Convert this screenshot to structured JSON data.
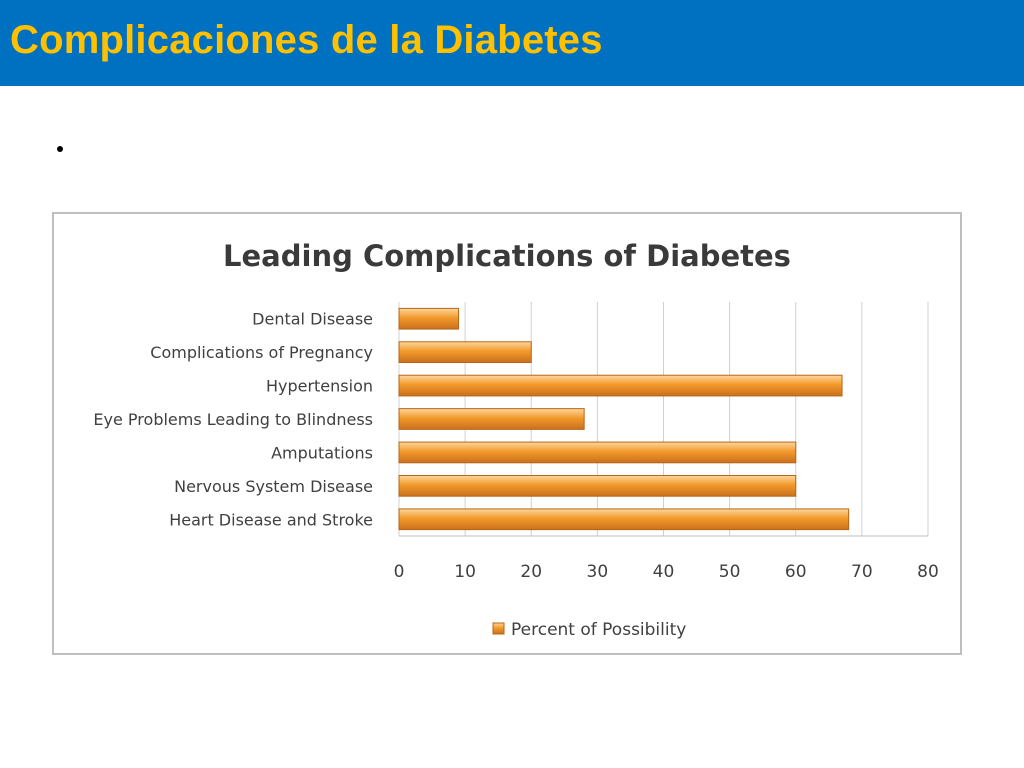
{
  "slide": {
    "title": "Complicaciones de la Diabetes",
    "bullet_text": ""
  },
  "colors": {
    "header_bg": "#0070C0",
    "header_text": "#FFC000",
    "bar_fill": "#F39A2B",
    "bar_stroke": "#B8651A"
  },
  "chart_data": {
    "type": "bar",
    "orientation": "horizontal",
    "title": "Leading Complications of Diabetes",
    "categories": [
      "Dental Disease",
      "Complications of Pregnancy",
      "Hypertension",
      "Eye Problems Leading to Blindness",
      "Amputations",
      "Nervous System Disease",
      "Heart Disease and Stroke"
    ],
    "series": [
      {
        "name": "Percent of Possibility",
        "values": [
          9,
          20,
          67,
          28,
          60,
          60,
          68
        ]
      }
    ],
    "xlim": [
      0,
      80
    ],
    "xticks": [
      0,
      10,
      20,
      30,
      40,
      50,
      60,
      70,
      80
    ],
    "xlabel": "",
    "ylabel": "",
    "grid": true,
    "legend_position": "bottom"
  }
}
